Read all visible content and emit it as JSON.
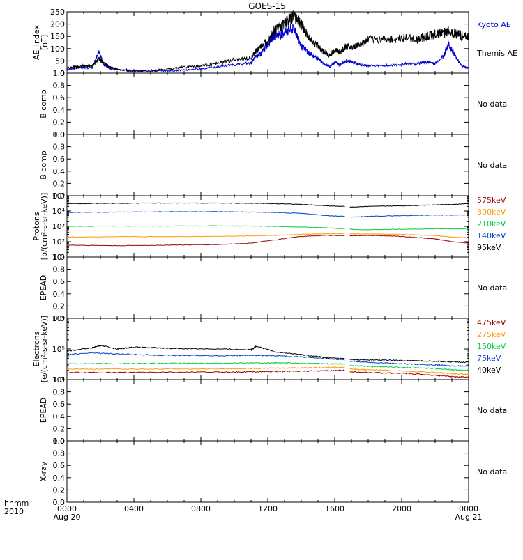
{
  "title": "GOES-15",
  "x_axis": {
    "row1_label": "hhmm",
    "row2_label": "2010",
    "ticks": [
      {
        "hhmm": "0000",
        "date": "Aug 20"
      },
      {
        "hhmm": "0400",
        "date": ""
      },
      {
        "hhmm": "0800",
        "date": ""
      },
      {
        "hhmm": "1200",
        "date": ""
      },
      {
        "hhmm": "1600",
        "date": ""
      },
      {
        "hhmm": "2000",
        "date": ""
      },
      {
        "hhmm": "0000",
        "date": "Aug 21"
      }
    ]
  },
  "colors": {
    "black": "#000000",
    "blue": "#0000cc",
    "red": "#990000",
    "orange": "#ff9900",
    "green": "#00cc44",
    "mid_blue": "#0044cc"
  },
  "chart_data": [
    {
      "type": "line",
      "ylabel": [
        "AE_index",
        "[nT]"
      ],
      "ylim": [
        0,
        250
      ],
      "yscale": "linear",
      "yticks": [
        "0",
        "50",
        "100",
        "150",
        "200",
        "250"
      ],
      "legend_placement": "right",
      "series": [
        {
          "name": "Kyoto AE",
          "color": "#0000cc",
          "x": [
            0,
            0.5,
            1,
            1.5,
            1.9,
            2.2,
            2.6,
            3,
            4,
            5,
            6,
            7,
            8,
            9,
            10,
            11,
            11.3,
            11.6,
            11.9,
            12.3,
            12.8,
            13.2,
            13.6,
            14,
            14.5,
            15,
            15.3,
            15.7,
            16,
            16.3,
            16.7,
            17,
            17.5,
            18,
            19,
            20,
            21,
            21.5,
            22,
            22.5,
            22.8,
            23.2,
            23.6,
            24
          ],
          "y": [
            15,
            20,
            25,
            20,
            90,
            35,
            20,
            15,
            8,
            8,
            10,
            12,
            18,
            25,
            35,
            40,
            70,
            80,
            110,
            150,
            160,
            175,
            180,
            110,
            80,
            60,
            40,
            25,
            45,
            35,
            50,
            45,
            35,
            30,
            30,
            35,
            40,
            45,
            40,
            70,
            120,
            70,
            30,
            20
          ]
        },
        {
          "name": "Themis AE",
          "color": "#000000",
          "x": [
            0,
            0.5,
            1,
            1.5,
            1.9,
            2.2,
            2.6,
            3,
            4,
            5,
            6,
            7,
            8,
            9,
            10,
            11,
            11.3,
            11.6,
            11.9,
            12.3,
            12.8,
            13.2,
            13.6,
            14,
            14.5,
            15,
            15.3,
            15.7,
            16,
            16.3,
            16.7,
            17,
            17.5,
            18,
            19,
            20,
            21,
            21.5,
            22,
            22.5,
            22.8,
            23.2,
            23.6,
            24
          ],
          "y": [
            20,
            25,
            30,
            30,
            60,
            40,
            25,
            15,
            10,
            10,
            15,
            25,
            30,
            40,
            55,
            60,
            90,
            110,
            130,
            170,
            195,
            215,
            235,
            200,
            140,
            110,
            90,
            70,
            95,
            85,
            110,
            105,
            115,
            135,
            140,
            140,
            140,
            150,
            160,
            165,
            170,
            165,
            150,
            150
          ]
        }
      ]
    },
    {
      "type": "line",
      "ylabel": [
        "B comp"
      ],
      "ylim": [
        0,
        1
      ],
      "yscale": "linear",
      "yticks": [
        "0.0",
        "0.2",
        "0.4",
        "0.6",
        "0.8",
        "1.0"
      ],
      "status": "No data",
      "series": []
    },
    {
      "type": "line",
      "ylabel": [
        "B comp"
      ],
      "ylim": [
        0,
        1
      ],
      "yscale": "linear",
      "yticks": [
        "0.0",
        "0.2",
        "0.4",
        "0.6",
        "0.8",
        "1.0"
      ],
      "status": "No data",
      "series": []
    },
    {
      "type": "line",
      "ylabel": [
        "Protons",
        "[p/(cm²-s-sr-keV)]"
      ],
      "ylim": [
        10,
        100000
      ],
      "yscale": "log",
      "yticks": [
        "10¹",
        "10²",
        "10³",
        "10⁴",
        "10⁵"
      ],
      "gap": [
        16.6,
        16.9
      ],
      "legend_placement": "right",
      "series": [
        {
          "name": "575keV",
          "color": "#990000",
          "x": [
            0,
            3,
            6,
            9,
            11,
            12.5,
            14,
            15.5,
            16.6,
            16.9,
            18,
            20,
            22,
            23,
            24
          ],
          "y": [
            60,
            55,
            60,
            65,
            80,
            130,
            220,
            260,
            250,
            240,
            260,
            220,
            150,
            100,
            80
          ]
        },
        {
          "name": "300keV",
          "color": "#ff9900",
          "x": [
            0,
            3,
            6,
            9,
            11,
            12.5,
            14,
            15.5,
            16.6,
            16.9,
            18,
            20,
            22,
            23,
            24
          ],
          "y": [
            200,
            210,
            215,
            225,
            240,
            260,
            300,
            330,
            340,
            330,
            320,
            300,
            250,
            200,
            180
          ]
        },
        {
          "name": "210keV",
          "color": "#00cc44",
          "x": [
            0,
            3,
            6,
            9,
            11,
            12.5,
            14,
            15.5,
            16.6,
            16.9,
            18,
            20,
            22,
            23,
            24
          ],
          "y": [
            1000,
            1050,
            1050,
            1080,
            1050,
            1000,
            900,
            800,
            700,
            650,
            600,
            650,
            700,
            700,
            700
          ]
        },
        {
          "name": "140keV",
          "color": "#0044cc",
          "x": [
            0,
            3,
            6,
            9,
            11,
            12.5,
            14,
            15.5,
            16.6,
            16.9,
            18,
            20,
            22,
            23,
            24
          ],
          "y": [
            8000,
            8500,
            9000,
            9000,
            8500,
            8000,
            7000,
            5000,
            4500,
            4000,
            4500,
            5000,
            5500,
            5500,
            5500
          ]
        },
        {
          "name": "95keV",
          "color": "#000000",
          "x": [
            0,
            3,
            6,
            9,
            11,
            12.5,
            14,
            15.5,
            16.6,
            16.9,
            18,
            20,
            22,
            23,
            24
          ],
          "y": [
            30000,
            32000,
            33000,
            33000,
            32000,
            30000,
            27000,
            22000,
            20000,
            18000,
            20000,
            22000,
            25000,
            27000,
            30000
          ]
        }
      ]
    },
    {
      "type": "line",
      "ylabel": [
        "EPEAD"
      ],
      "ylim": [
        0,
        1
      ],
      "yscale": "linear",
      "yticks": [
        "0.0",
        "0.2",
        "0.4",
        "0.6",
        "0.8",
        "1.0"
      ],
      "status": "No data",
      "series": []
    },
    {
      "type": "line",
      "ylabel": [
        "Electrons",
        "[e/(cm²-s-sr-keV)]"
      ],
      "ylim": [
        10000,
        1000000
      ],
      "yscale": "log",
      "yticks": [
        "10⁴",
        "10⁵",
        "10⁶"
      ],
      "gap": [
        16.6,
        16.9
      ],
      "legend_placement": "right",
      "series": [
        {
          "name": "475keV",
          "color": "#990000",
          "x": [
            0,
            3,
            6,
            9,
            11,
            12.5,
            14,
            15.5,
            16.6,
            16.9,
            18,
            20,
            22,
            23,
            24
          ],
          "y": [
            17000,
            17000,
            17500,
            17500,
            18000,
            18500,
            19000,
            19500,
            20000,
            18000,
            17000,
            16000,
            14000,
            12500,
            12000
          ]
        },
        {
          "name": "275keV",
          "color": "#ff9900",
          "x": [
            0,
            3,
            6,
            9,
            11,
            12.5,
            14,
            15.5,
            16.6,
            16.9,
            18,
            20,
            22,
            23,
            24
          ],
          "y": [
            22000,
            22000,
            22500,
            22500,
            23000,
            23500,
            24000,
            25000,
            25000,
            22000,
            21000,
            19000,
            17000,
            15500,
            15000
          ]
        },
        {
          "name": "150keV",
          "color": "#00cc44",
          "x": [
            0,
            3,
            6,
            9,
            11,
            12.5,
            14,
            15.5,
            16.6,
            16.9,
            18,
            20,
            22,
            23,
            24
          ],
          "y": [
            33000,
            33000,
            34000,
            34000,
            35000,
            35000,
            34000,
            33000,
            32000,
            29000,
            27000,
            25000,
            23000,
            21000,
            20000
          ]
        },
        {
          "name": "75keV",
          "color": "#0044cc",
          "x": [
            0,
            1.5,
            3,
            6,
            9,
            11,
            12.5,
            14,
            15.5,
            16.6,
            16.9,
            18,
            20,
            22,
            23,
            24
          ],
          "y": [
            65000,
            75000,
            68000,
            62000,
            60000,
            62000,
            60000,
            55000,
            48000,
            44000,
            40000,
            37000,
            33000,
            30000,
            28000,
            28000
          ]
        },
        {
          "name": "40keV",
          "color": "#000000",
          "x": [
            0,
            1.5,
            2,
            3,
            4,
            6,
            9,
            11,
            11.3,
            12.5,
            14,
            15.5,
            16.6,
            16.9,
            18,
            20,
            22,
            23,
            24
          ],
          "y": [
            85000,
            110000,
            130000,
            100000,
            115000,
            105000,
            100000,
            95000,
            120000,
            80000,
            65000,
            52000,
            48000,
            45000,
            44000,
            42000,
            40000,
            38000,
            37000
          ]
        }
      ]
    },
    {
      "type": "line",
      "ylabel": [
        "EPEAD"
      ],
      "ylim": [
        0,
        1
      ],
      "yscale": "linear",
      "yticks": [
        "0.0",
        "0.2",
        "0.4",
        "0.6",
        "0.8",
        "1.0"
      ],
      "status": "No data",
      "series": []
    },
    {
      "type": "line",
      "ylabel": [
        "X-ray"
      ],
      "ylim": [
        0,
        1
      ],
      "yscale": "linear",
      "yticks": [
        "0.0",
        "0.2",
        "0.4",
        "0.6",
        "0.8",
        "1.0"
      ],
      "status": "No data",
      "series": []
    }
  ]
}
